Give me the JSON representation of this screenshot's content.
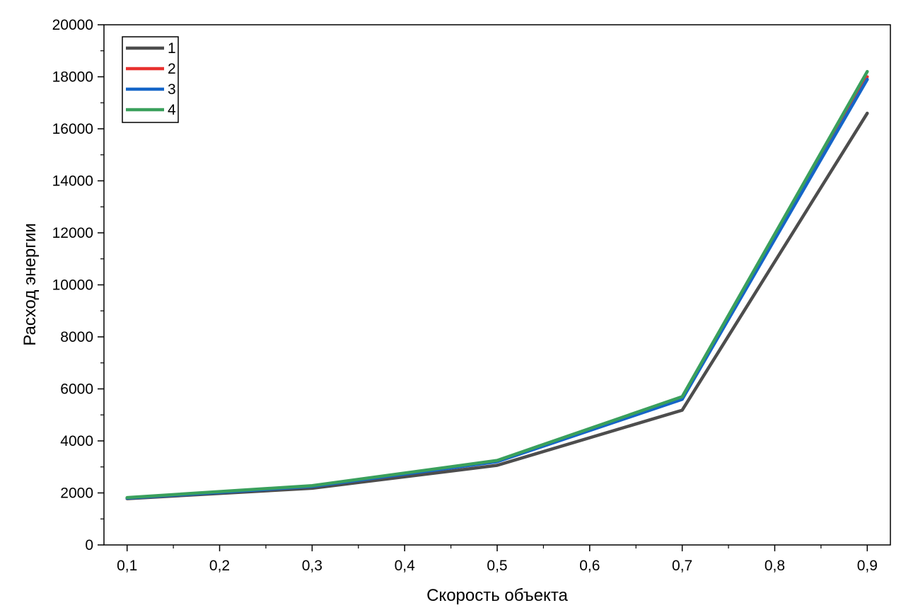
{
  "chart_data": {
    "type": "line",
    "title": "",
    "xlabel": "Скорость объекта",
    "ylabel": "Расход энергии",
    "x": [
      0.1,
      0.3,
      0.5,
      0.7,
      0.9
    ],
    "xlim": [
      0.075,
      0.925
    ],
    "ylim": [
      0,
      20000
    ],
    "x_ticks": [
      0.1,
      0.2,
      0.3,
      0.4,
      0.5,
      0.6,
      0.7,
      0.8,
      0.9
    ],
    "x_tick_labels": [
      "0,1",
      "0,2",
      "0,3",
      "0,4",
      "0,5",
      "0,6",
      "0,7",
      "0,8",
      "0,9"
    ],
    "y_ticks": [
      0,
      2000,
      4000,
      6000,
      8000,
      10000,
      12000,
      14000,
      16000,
      18000,
      20000
    ],
    "y_tick_labels": [
      "0",
      "2000",
      "4000",
      "6000",
      "8000",
      "10000",
      "12000",
      "14000",
      "16000",
      "18000",
      "20000"
    ],
    "grid": false,
    "legend_position": "top-left",
    "series": [
      {
        "name": "1",
        "color": "#4d4d4d",
        "values": [
          1780,
          2180,
          3060,
          5180,
          16600
        ]
      },
      {
        "name": "2",
        "color": "#e8312f",
        "values": [
          1800,
          2260,
          3220,
          5650,
          18000
        ]
      },
      {
        "name": "3",
        "color": "#1565c8",
        "values": [
          1800,
          2250,
          3200,
          5600,
          17900
        ]
      },
      {
        "name": "4",
        "color": "#3aa05c",
        "values": [
          1820,
          2280,
          3250,
          5700,
          18200
        ]
      }
    ]
  }
}
